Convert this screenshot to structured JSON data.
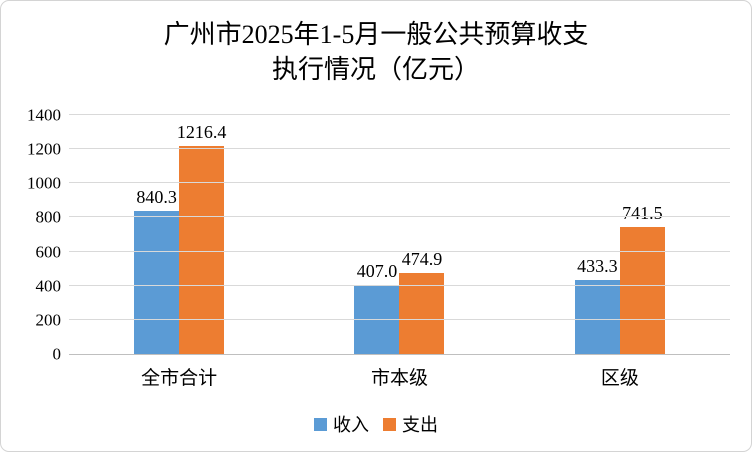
{
  "title": {
    "line1": "广州市2025年1-5月一般公共预算收支",
    "line2": "执行情况（亿元）"
  },
  "colors": {
    "income": "#5B9BD5",
    "expense": "#ED7D31",
    "gridline": "#D9D9D9",
    "axis_line": "#BFBFBF",
    "text": "#000000"
  },
  "chart_data": {
    "type": "bar",
    "title": "广州市2025年1-5月一般公共预算收支执行情况（亿元）",
    "categories": [
      "全市合计",
      "市本级",
      "区级"
    ],
    "series": [
      {
        "name": "收入",
        "color": "#5B9BD5",
        "values": [
          840.3,
          407.0,
          433.3
        ],
        "labels": [
          "840.3",
          "407.0",
          "433.3"
        ]
      },
      {
        "name": "支出",
        "color": "#ED7D31",
        "values": [
          1216.4,
          474.9,
          741.5
        ],
        "labels": [
          "1216.4",
          "474.9",
          "741.5"
        ]
      }
    ],
    "ylim": [
      0,
      1400
    ],
    "yticks": [
      0,
      200,
      400,
      600,
      800,
      1000,
      1200,
      1400
    ],
    "grid": true,
    "legend_position": "bottom"
  }
}
